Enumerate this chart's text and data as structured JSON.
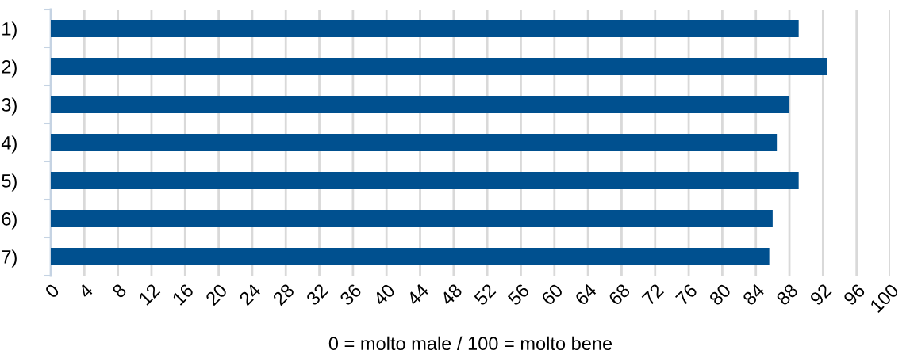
{
  "chart_data": {
    "type": "bar",
    "orientation": "horizontal",
    "xlabel": "0 = molto male / 100 = molto bene",
    "categories": [
      "1)",
      "2)",
      "3)",
      "4)",
      "5)",
      "6)",
      "7)"
    ],
    "values": [
      89.1,
      92.5,
      88.0,
      86.5,
      89.1,
      86.0,
      85.6
    ],
    "color": "#00508f",
    "xlim": [
      0,
      100
    ],
    "xticks": [
      0,
      4,
      8,
      12,
      16,
      20,
      24,
      28,
      32,
      36,
      40,
      44,
      48,
      52,
      56,
      60,
      64,
      68,
      72,
      76,
      80,
      84,
      88,
      92,
      96,
      100
    ],
    "grid": "x"
  }
}
